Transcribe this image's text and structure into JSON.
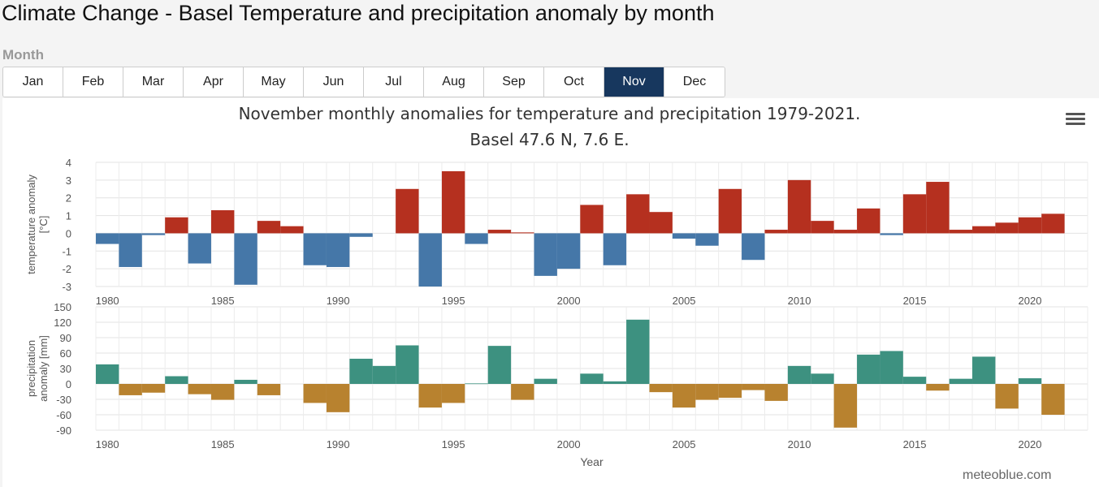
{
  "page": {
    "title": "Climate Change - Basel Temperature and precipitation anomaly by month",
    "month_label": "Month"
  },
  "months": [
    "Jan",
    "Feb",
    "Mar",
    "Apr",
    "May",
    "Jun",
    "Jul",
    "Aug",
    "Sep",
    "Oct",
    "Nov",
    "Dec"
  ],
  "selected_month": "Nov",
  "colors": {
    "temp_positive": "#b5301f",
    "temp_negative": "#4577a8",
    "precip_positive": "#3d9180",
    "precip_negative": "#b8822f",
    "active_button": "#17375e"
  },
  "chart": {
    "title_line1": "November monthly anomalies for temperature and precipitation 1979-2021.",
    "title_line2": "Basel 47.6 N, 7.6 E.",
    "credit": "meteoblue.com"
  },
  "chart_data": [
    {
      "type": "bar",
      "ylabel": "temperature anomaly [°C]",
      "ylim": [
        -3,
        4
      ],
      "yticks": [
        4,
        3,
        2,
        1,
        0,
        -1,
        -2,
        -3
      ],
      "xlim": [
        1979.5,
        2022.5
      ],
      "xticks": [
        1980,
        1985,
        1990,
        1995,
        2000,
        2005,
        2010,
        2015,
        2020
      ],
      "grid": true,
      "x": [
        1980,
        1981,
        1982,
        1983,
        1984,
        1985,
        1986,
        1987,
        1988,
        1989,
        1990,
        1991,
        1992,
        1993,
        1994,
        1995,
        1996,
        1997,
        1998,
        1999,
        2000,
        2001,
        2002,
        2003,
        2004,
        2005,
        2006,
        2007,
        2008,
        2009,
        2010,
        2011,
        2012,
        2013,
        2014,
        2015,
        2016,
        2017,
        2018,
        2019,
        2020,
        2021,
        2022
      ],
      "values": [
        -0.6,
        -1.9,
        -0.1,
        0.9,
        -1.7,
        1.3,
        -2.9,
        0.7,
        0.4,
        -1.8,
        -1.9,
        -0.2,
        0,
        2.5,
        -3.0,
        3.5,
        -0.6,
        0.2,
        0.05,
        -2.4,
        -2.0,
        1.6,
        -1.8,
        2.2,
        1.2,
        -0.3,
        -0.7,
        2.5,
        -1.5,
        0.2,
        3.0,
        0.7,
        0.2,
        1.4,
        -0.1,
        2.2,
        2.9,
        0.2,
        0.4,
        0.6,
        0.9,
        1.1,
        0
      ]
    },
    {
      "type": "bar",
      "xlabel": "Year",
      "ylabel": "precipitation anomaly [mm]",
      "ylim": [
        -90,
        150
      ],
      "yticks": [
        150,
        120,
        90,
        60,
        30,
        0,
        -30,
        -60,
        -90
      ],
      "xlim": [
        1979.5,
        2022.5
      ],
      "xticks": [
        1980,
        1985,
        1990,
        1995,
        2000,
        2005,
        2010,
        2015,
        2020
      ],
      "grid": true,
      "x": [
        1980,
        1981,
        1982,
        1983,
        1984,
        1985,
        1986,
        1987,
        1988,
        1989,
        1990,
        1991,
        1992,
        1993,
        1994,
        1995,
        1996,
        1997,
        1998,
        1999,
        2000,
        2001,
        2002,
        2003,
        2004,
        2005,
        2006,
        2007,
        2008,
        2009,
        2010,
        2011,
        2012,
        2013,
        2014,
        2015,
        2016,
        2017,
        2018,
        2019,
        2020,
        2021,
        2022
      ],
      "values": [
        38,
        -22,
        -17,
        15,
        -20,
        -31,
        8,
        -22,
        0,
        -37,
        -55,
        49,
        35,
        75,
        -46,
        -37,
        1,
        74,
        -31,
        10,
        0,
        20,
        5,
        125,
        -16,
        -46,
        -31,
        -27,
        -12,
        -33,
        35,
        20,
        -85,
        57,
        64,
        14,
        -13,
        10,
        53,
        -48,
        11,
        -60,
        0
      ]
    }
  ]
}
